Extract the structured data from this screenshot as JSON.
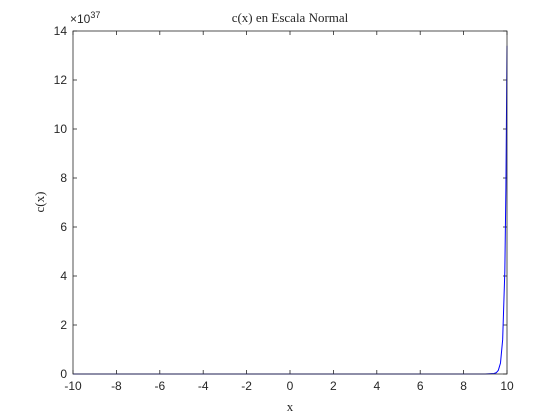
{
  "chart_data": {
    "type": "line",
    "title": "c(x) en Escala Normal",
    "xlabel": "x",
    "ylabel": "c(x)",
    "xlim": [
      -10,
      10
    ],
    "ylim": [
      0,
      14
    ],
    "y_scale_factor": 1e+37,
    "y_exponent_label": {
      "base": "×10",
      "exponent": "37"
    },
    "xticks": [
      -10,
      -8,
      -6,
      -4,
      -2,
      0,
      2,
      4,
      6,
      8,
      10
    ],
    "yticks": [
      0,
      2,
      4,
      6,
      8,
      10,
      12,
      14
    ],
    "grid": false,
    "series": [
      {
        "color": "#0000ff",
        "x": [
          -10,
          -8,
          -6,
          -4,
          -2,
          0,
          2,
          4,
          6,
          8,
          9,
          9.4,
          9.5,
          9.6,
          9.7,
          9.8,
          9.9,
          9.95,
          10
        ],
        "y": [
          0,
          0,
          0,
          0,
          0,
          0,
          0,
          0,
          0,
          0,
          0.001,
          0.02,
          0.05,
          0.15,
          0.45,
          1.4,
          4.2,
          7.6,
          13.4
        ]
      }
    ]
  }
}
